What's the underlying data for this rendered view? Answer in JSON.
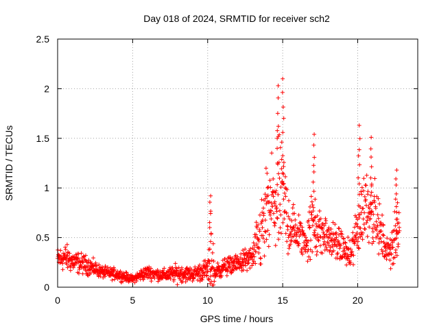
{
  "chart_data": {
    "type": "scatter",
    "title": "Day 018 of 2024, SRMTID for receiver sch2",
    "xlabel": "GPS time / hours",
    "ylabel": "SRMTID / TECUs",
    "xlim": [
      0,
      24
    ],
    "ylim": [
      0,
      2.5
    ],
    "xticks": [
      0,
      5,
      10,
      15,
      20
    ],
    "xtick_labels": [
      "0",
      "5",
      "10",
      "15",
      "20"
    ],
    "yticks": [
      0,
      0.5,
      1,
      1.5,
      2,
      2.5
    ],
    "ytick_labels": [
      "0",
      "0.5",
      "1",
      "1.5",
      "2",
      "2.5"
    ],
    "grid": true,
    "marker": "+",
    "color": "#ff0000",
    "series": [
      {
        "name": "SRMTID sch2",
        "envelope": {
          "x": [
            0.0,
            0.5,
            1.0,
            2.0,
            3.0,
            4.0,
            5.0,
            5.5,
            6.0,
            7.0,
            8.0,
            9.0,
            10.0,
            10.3,
            10.5,
            11.0,
            12.0,
            13.0,
            13.5,
            14.0,
            14.5,
            15.0,
            15.5,
            16.0,
            16.5,
            17.0,
            17.5,
            18.0,
            18.5,
            19.0,
            19.5,
            20.0,
            20.5,
            21.0,
            21.5,
            22.0,
            22.5,
            22.8
          ],
          "y_center": [
            0.28,
            0.3,
            0.26,
            0.22,
            0.15,
            0.13,
            0.08,
            0.12,
            0.15,
            0.12,
            0.14,
            0.13,
            0.18,
            0.22,
            0.14,
            0.2,
            0.24,
            0.3,
            0.5,
            0.75,
            0.85,
            0.9,
            0.6,
            0.55,
            0.45,
            0.65,
            0.55,
            0.5,
            0.45,
            0.4,
            0.3,
            0.6,
            0.85,
            0.8,
            0.55,
            0.35,
            0.5,
            0.55
          ],
          "y_spread": [
            0.1,
            0.12,
            0.1,
            0.08,
            0.05,
            0.05,
            0.03,
            0.05,
            0.06,
            0.05,
            0.08,
            0.06,
            0.1,
            0.3,
            0.08,
            0.08,
            0.08,
            0.12,
            0.3,
            0.5,
            0.55,
            0.5,
            0.25,
            0.2,
            0.15,
            0.35,
            0.2,
            0.18,
            0.15,
            0.15,
            0.12,
            0.3,
            0.35,
            0.3,
            0.2,
            0.12,
            0.25,
            0.2
          ]
        },
        "peaks": [
          {
            "x": 10.2,
            "y": 0.92
          },
          {
            "x": 14.7,
            "y": 2.03
          },
          {
            "x": 15.0,
            "y": 2.1
          },
          {
            "x": 17.1,
            "y": 1.54
          },
          {
            "x": 20.1,
            "y": 1.63
          },
          {
            "x": 20.9,
            "y": 1.51
          },
          {
            "x": 22.6,
            "y": 1.18
          }
        ]
      }
    ]
  }
}
